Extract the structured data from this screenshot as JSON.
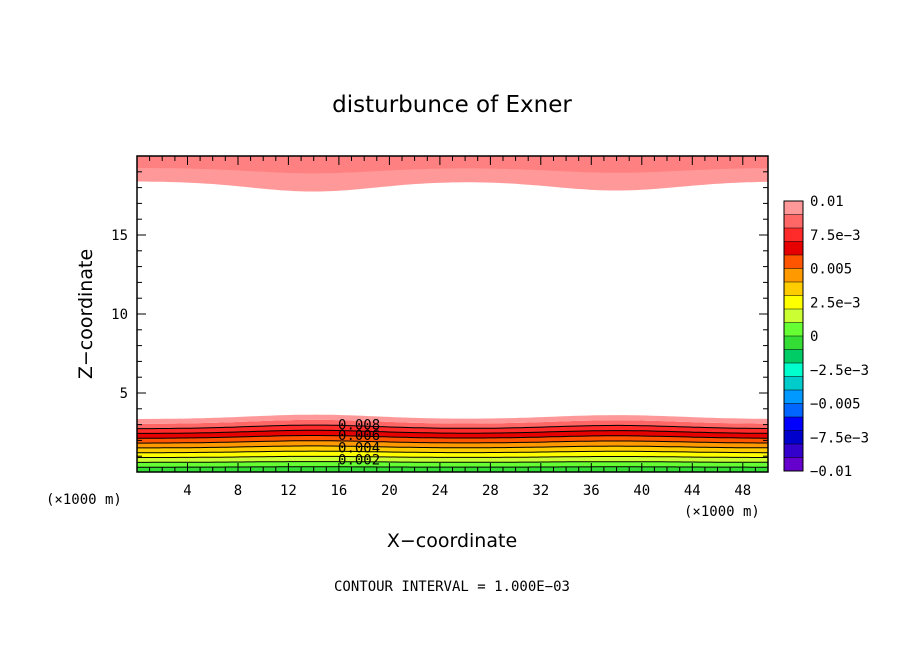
{
  "chart_data": {
    "type": "heatmap",
    "title": "disturbunce of Exner",
    "xlabel": "X−coordinate",
    "ylabel": "Z−coordinate",
    "x_unit_left": "(×1000 m)",
    "x_unit_right": "(×1000 m)",
    "xlim": [
      0,
      50
    ],
    "ylim": [
      0,
      20
    ],
    "x_ticks": [
      "4",
      "8",
      "12",
      "16",
      "20",
      "24",
      "28",
      "32",
      "36",
      "40",
      "44",
      "48"
    ],
    "y_ticks": [
      "5",
      "10",
      "15"
    ],
    "footer": "CONTOUR INTERVAL = 1.000E−03",
    "contour_labels": [
      "0.008",
      "0.006",
      "0.004",
      "0.002"
    ],
    "colorbar": {
      "min": -0.01,
      "max": 0.01,
      "labels": [
        "0.01",
        "7.5e−3",
        "0.005",
        "2.5e−3",
        "0",
        "−2.5e−3",
        "−0.005",
        "−7.5e−3",
        "−0.01"
      ],
      "colors": [
        "#ff9999",
        "#ff6666",
        "#ff2a2a",
        "#e60000",
        "#ff5500",
        "#ff9900",
        "#ffcc00",
        "#ffff00",
        "#ccff33",
        "#66ff33",
        "#33dd33",
        "#00cc66",
        "#00ffcc",
        "#00cccc",
        "#0099ff",
        "#0066ff",
        "#0000ff",
        "#0000cc",
        "#3300cc",
        "#6600cc"
      ]
    }
  }
}
